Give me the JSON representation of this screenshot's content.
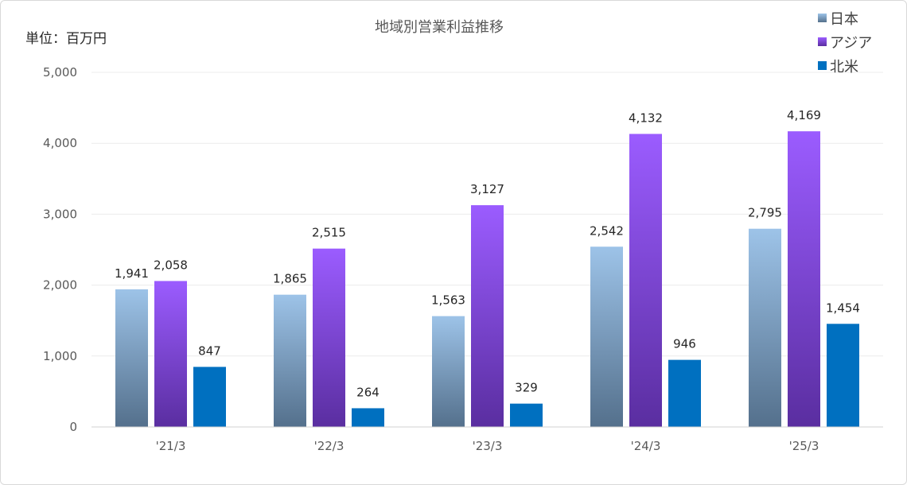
{
  "chart_data": {
    "type": "bar",
    "title": "地域別営業利益推移",
    "unit_label": "単位：百万円",
    "xlabel": "",
    "ylabel": "",
    "categories": [
      "'21/3",
      "'22/3",
      "'23/3",
      "'24/3",
      "'25/3"
    ],
    "series": [
      {
        "name": "日本",
        "values": [
          1941,
          1865,
          1563,
          2542,
          2795
        ]
      },
      {
        "name": "アジア",
        "values": [
          2058,
          2515,
          3127,
          4132,
          4169
        ]
      },
      {
        "name": "北米",
        "values": [
          847,
          264,
          329,
          946,
          1454
        ]
      }
    ],
    "data_labels": [
      [
        "1,941",
        "1,865",
        "1,563",
        "2,542",
        "2,795"
      ],
      [
        "2,058",
        "2,515",
        "3,127",
        "4,132",
        "4,169"
      ],
      [
        "847",
        "264",
        "329",
        "946",
        "1,454"
      ]
    ],
    "ylim": [
      0,
      5000
    ],
    "yticks": [
      0,
      1000,
      2000,
      3000,
      4000,
      5000
    ],
    "ytick_labels": [
      "0",
      "1,000",
      "2,000",
      "3,000",
      "4,000",
      "5,000"
    ],
    "grid": true,
    "legend_position": "top-right"
  }
}
